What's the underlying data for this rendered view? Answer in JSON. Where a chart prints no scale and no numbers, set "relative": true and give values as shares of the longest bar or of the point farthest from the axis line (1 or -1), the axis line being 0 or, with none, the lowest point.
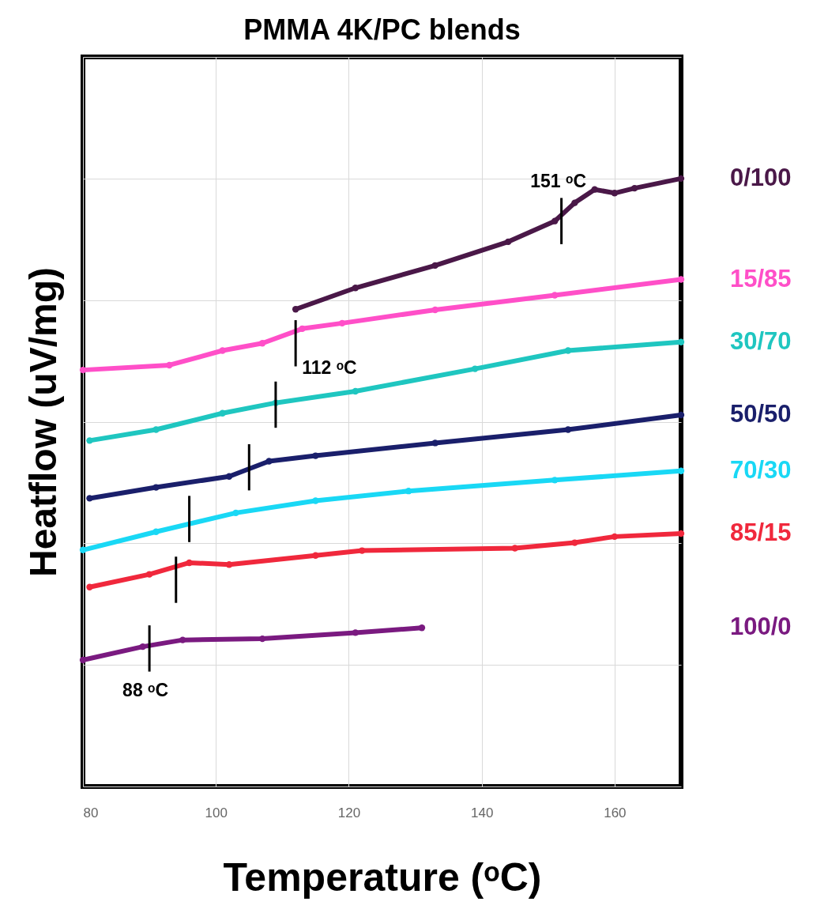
{
  "chart_data": {
    "type": "line",
    "title": "PMMA 4K/PC blends",
    "xlabel": "Temperature (ᵒC)",
    "ylabel": "Heatflow (uV/mg)",
    "relative": true,
    "xlim": [
      80,
      170
    ],
    "xticks": [
      80,
      100,
      120,
      140,
      160
    ],
    "grid": true,
    "tick_labels": "x",
    "marker": "circle",
    "legend": false,
    "series": [
      {
        "name": "0/100",
        "color": "#4a1848",
        "x": [
          112,
          121,
          133,
          144,
          151,
          154,
          157,
          160,
          163,
          170
        ],
        "values": [
          0.785,
          0.82,
          0.857,
          0.896,
          0.93,
          0.96,
          0.982,
          0.976,
          0.984,
          1
        ]
      },
      {
        "name": "15/85",
        "color": "#ff4fc8",
        "x": [
          80,
          93,
          101,
          107,
          113,
          119,
          133,
          151,
          170
        ],
        "values": [
          0.685,
          0.693,
          0.717,
          0.729,
          0.753,
          0.762,
          0.784,
          0.808,
          0.834
        ]
      },
      {
        "name": "30/70",
        "color": "#1fc6c0",
        "x": [
          81,
          91,
          101,
          109,
          121,
          139,
          153,
          170
        ],
        "values": [
          0.569,
          0.587,
          0.614,
          0.631,
          0.65,
          0.687,
          0.717,
          0.731
        ]
      },
      {
        "name": "50/50",
        "color": "#1a1f6b",
        "x": [
          81,
          91,
          102,
          108,
          115,
          133,
          153,
          170
        ],
        "values": [
          0.474,
          0.492,
          0.51,
          0.535,
          0.544,
          0.565,
          0.587,
          0.611
        ]
      },
      {
        "name": "70/30",
        "color": "#19d8f5",
        "x": [
          80,
          91,
          103,
          115,
          129,
          151,
          170
        ],
        "values": [
          0.389,
          0.419,
          0.45,
          0.47,
          0.486,
          0.504,
          0.519
        ]
      },
      {
        "name": "85/15",
        "color": "#f0283c",
        "x": [
          81,
          90,
          96,
          102,
          115,
          122,
          145,
          154,
          160,
          170
        ],
        "values": [
          0.328,
          0.349,
          0.368,
          0.365,
          0.38,
          0.388,
          0.392,
          0.401,
          0.411,
          0.416
        ]
      },
      {
        "name": "100/0",
        "color": "#7a1a80",
        "x": [
          80,
          89,
          95,
          107,
          121,
          131
        ],
        "values": [
          0.208,
          0.23,
          0.241,
          0.243,
          0.253,
          0.261
        ]
      },
      {
        "marker": "none",
        "color": "#000000",
        "x": [
          152,
          152
        ],
        "values": [
          0.892,
          0.968
        ]
      },
      {
        "marker": "none",
        "color": "#000000",
        "x": [
          112,
          112
        ],
        "values": [
          0.691,
          0.767
        ]
      },
      {
        "marker": "none",
        "color": "#000000",
        "x": [
          109,
          109
        ],
        "values": [
          0.59,
          0.666
        ]
      },
      {
        "marker": "none",
        "color": "#000000",
        "x": [
          105,
          105
        ],
        "values": [
          0.487,
          0.563
        ]
      },
      {
        "marker": "none",
        "color": "#000000",
        "x": [
          96,
          96
        ],
        "values": [
          0.402,
          0.478
        ]
      },
      {
        "marker": "none",
        "color": "#000000",
        "x": [
          94,
          94
        ],
        "values": [
          0.302,
          0.378
        ]
      },
      {
        "marker": "none",
        "color": "#000000",
        "x": [
          90,
          90
        ],
        "values": [
          0.189,
          0.265
        ]
      }
    ],
    "annotations": [
      {
        "text": "151 ᵒC",
        "x": 152,
        "y": 0.968
      },
      {
        "text": "112 ᵒC",
        "x": 112,
        "y": 0.691
      },
      {
        "text": "88 ᵒC",
        "x": 90,
        "y": 0.189
      }
    ]
  }
}
